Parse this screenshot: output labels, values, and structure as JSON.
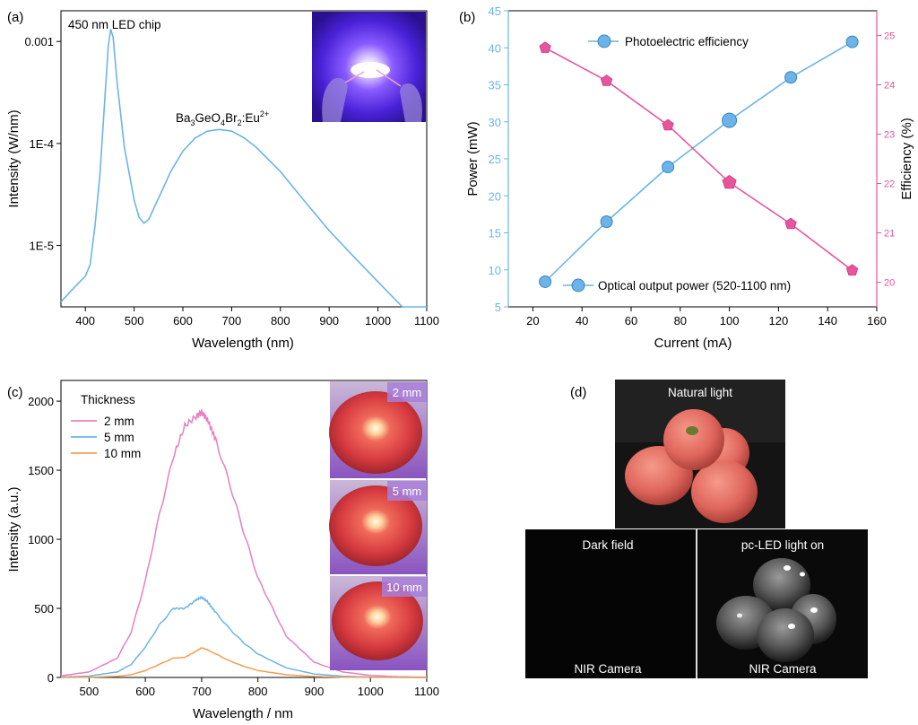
{
  "panel_a": {
    "label": "(a)",
    "xlabel": "Wavelength (nm)",
    "ylabel": "Intensity (W/nm)",
    "annotation_chip": "450 nm LED chip",
    "annotation_phosphor_base": "Ba",
    "annotation_phosphor_sub1": "3",
    "annotation_phosphor_mid1": "GeO",
    "annotation_phosphor_sub2": "4",
    "annotation_phosphor_mid2": "Br",
    "annotation_phosphor_sub3": "2",
    "annotation_phosphor_mid3": ":Eu",
    "annotation_phosphor_sup": "2+",
    "inset_description": "blue LED photo",
    "color": "#6cb4e8"
  },
  "panel_b": {
    "label": "(b)",
    "xlabel": "Current (mA)",
    "ylabel_left": "Power (mW)",
    "ylabel_right": "Efficiency (%)",
    "left_color": "#6cb4e8",
    "right_color": "#e7559c"
  },
  "panel_c": {
    "label": "(c)",
    "xlabel": "Wavelength / nm",
    "ylabel": "Intensity (a.u.)",
    "legend_title": "Thickness",
    "inset_labels": [
      "2 mm",
      "5 mm",
      "10 mm"
    ]
  },
  "panel_d": {
    "label": "(d)",
    "natural": "Natural light",
    "dark": "Dark field",
    "pcled": "pc-LED light on",
    "camera_left": "NIR Camera",
    "camera_right": "NIR Camera"
  },
  "chart_data": [
    {
      "type": "line",
      "panel": "a",
      "x_range": [
        350,
        1100
      ],
      "y_scale": "log",
      "y_range": [
        2.5e-06,
        0.002
      ],
      "x_ticks": [
        400,
        500,
        600,
        700,
        800,
        900,
        1000,
        1100
      ],
      "y_ticks": [
        {
          "value": 1e-05,
          "label": "1E-5"
        },
        {
          "value": 0.0001,
          "label": "1E-4"
        },
        {
          "value": 0.001,
          "label": "0.001"
        }
      ],
      "series": [
        {
          "x": [
            350,
            380,
            400,
            410,
            420,
            430,
            440,
            447,
            452,
            457,
            465,
            480,
            500,
            510,
            520,
            530,
            550,
            575,
            600,
            625,
            650,
            675,
            700,
            725,
            750,
            800,
            850,
            900,
            950,
            1000,
            1050,
            1100
          ],
          "y": [
            2.8e-06,
            4e-06,
            5e-06,
            6.5e-06,
            1.6e-05,
            5e-05,
            0.00028,
            0.0009,
            0.00132,
            0.0011,
            0.0004,
            9.2e-05,
            2.8e-05,
            1.9e-05,
            1.65e-05,
            1.8e-05,
            2.9e-05,
            5.3e-05,
            8.4e-05,
            0.000113,
            0.000132,
            0.000137,
            0.000132,
            0.000114,
            9.2e-05,
            5.3e-05,
            2.7e-05,
            1.4e-05,
            7.8e-06,
            4.4e-06,
            2.5e-06,
            1.3e-06
          ]
        }
      ]
    },
    {
      "type": "line",
      "panel": "b",
      "x": [
        25,
        50,
        75,
        100,
        125,
        150
      ],
      "x_range": [
        10,
        160
      ],
      "x_ticks": [
        20,
        40,
        60,
        80,
        100,
        120,
        140,
        160
      ],
      "y_left_range": [
        5,
        45
      ],
      "y_left_ticks": [
        5,
        10,
        15,
        20,
        25,
        30,
        35,
        40,
        45
      ],
      "y_right_range": [
        19.5,
        25.5
      ],
      "y_right_ticks": [
        20,
        21,
        22,
        23,
        24,
        25
      ],
      "series": [
        {
          "name": "Optical output power (520-1100 nm)",
          "axis": "left",
          "values": [
            8.4,
            16.5,
            23.9,
            30.2,
            36.0,
            40.8
          ]
        },
        {
          "name": "Photoelectric efficiency",
          "axis": "right",
          "values": [
            24.75,
            24.08,
            23.18,
            22.02,
            21.18,
            20.24
          ]
        }
      ]
    },
    {
      "type": "line",
      "panel": "c",
      "x_range": [
        450,
        1100
      ],
      "x_ticks": [
        500,
        600,
        700,
        800,
        900,
        1000,
        1100
      ],
      "y_range": [
        0,
        2150
      ],
      "y_ticks": [
        0,
        500,
        1000,
        1500,
        2000
      ],
      "x": [
        450,
        500,
        550,
        575,
        600,
        625,
        650,
        670,
        690,
        700,
        710,
        725,
        750,
        775,
        800,
        850,
        900,
        950,
        1000,
        1050,
        1100
      ],
      "series": [
        {
          "name": "2 mm",
          "color": "#e77fc0",
          "values": [
            12,
            40,
            140,
            330,
            700,
            1180,
            1600,
            1820,
            1890,
            1920,
            1870,
            1720,
            1400,
            1050,
            720,
            300,
            110,
            40,
            15,
            5,
            2
          ]
        },
        {
          "name": "5 mm",
          "color": "#6cb4e8",
          "values": [
            3,
            10,
            40,
            95,
            220,
            380,
            500,
            500,
            560,
            580,
            550,
            470,
            350,
            250,
            170,
            70,
            25,
            9,
            3,
            1,
            0
          ]
        },
        {
          "name": "10 mm",
          "color": "#f0a050",
          "values": [
            0,
            2,
            8,
            20,
            50,
            95,
            140,
            145,
            190,
            215,
            200,
            170,
            120,
            80,
            50,
            20,
            7,
            2,
            1,
            0,
            0
          ]
        }
      ]
    }
  ]
}
